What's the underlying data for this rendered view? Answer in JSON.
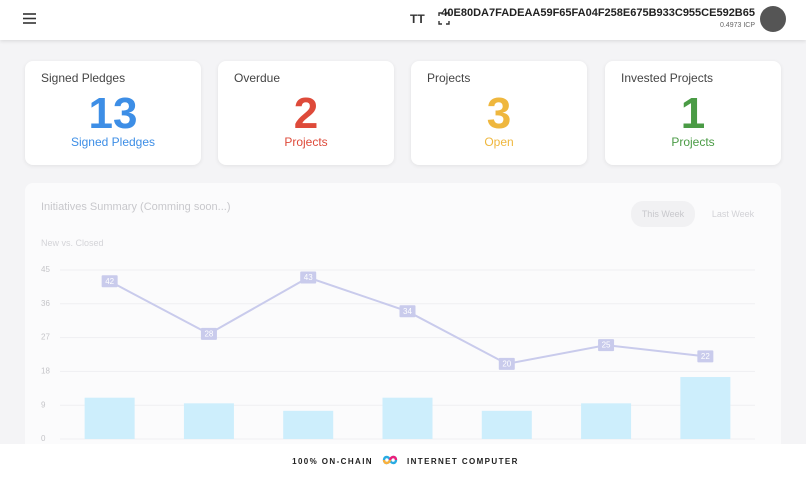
{
  "header": {
    "account_id": "40E80DA7FADEAA59F65FA04F258E675B933C955CE592B65",
    "balance": "0.4973 ICP"
  },
  "cards": [
    {
      "title": "Signed Pledges",
      "value": 13,
      "label": "Signed Pledges",
      "color": "#3d8ee6"
    },
    {
      "title": "Overdue",
      "value": 2,
      "label": "Projects",
      "color": "#de4a3a"
    },
    {
      "title": "Projects",
      "value": 3,
      "label": "Open",
      "color": "#efb73e"
    },
    {
      "title": "Invested Projects",
      "value": 1,
      "label": "Projects",
      "color": "#4a9b45"
    }
  ],
  "chart_tabs": [
    "This Week",
    "Last Week"
  ],
  "chart_data": {
    "type": "bar-line",
    "title": "Initiatives Summary (Comming soon...)",
    "subtitle": "New vs. Closed",
    "ylim": [
      0,
      45
    ],
    "yticks": [
      0,
      9,
      18,
      27,
      36,
      45
    ],
    "grid": true,
    "series": [
      {
        "type": "bar",
        "color": "#cdeefc",
        "values": [
          11,
          9.5,
          7.5,
          11,
          7.5,
          9.5,
          16.5
        ]
      },
      {
        "type": "line",
        "color": "#c9cbec",
        "values": [
          42,
          28,
          43,
          34,
          20,
          25,
          22
        ]
      }
    ]
  },
  "footer": {
    "left": "100% ON-CHAIN",
    "right": "INTERNET COMPUTER"
  }
}
